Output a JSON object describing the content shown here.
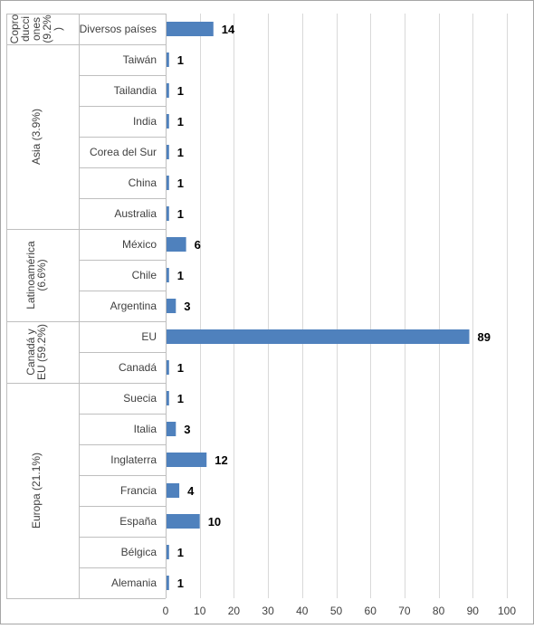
{
  "chart_data": {
    "type": "bar",
    "orientation": "horizontal",
    "categories": [
      "Diversos países",
      "Taiwán",
      "Tailandia",
      "India",
      "Corea del Sur",
      "China",
      "Australia",
      "México",
      "Chile",
      "Argentina",
      "EU",
      "Canadá",
      "Suecia",
      "Italia",
      "Inglaterra",
      "Francia",
      "España",
      "Bélgica",
      "Alemania"
    ],
    "values": [
      14,
      1,
      1,
      1,
      1,
      1,
      1,
      6,
      1,
      3,
      89,
      1,
      1,
      3,
      12,
      4,
      10,
      1,
      1
    ],
    "data_labels": [
      "14",
      "1",
      "1",
      "1",
      "1",
      "1",
      "1",
      "6",
      "1",
      "3",
      "89",
      "1",
      "1",
      "3",
      "12",
      "4",
      "10",
      "1",
      "1"
    ],
    "groups": [
      {
        "label": "Copro ducci ones (9.2% )",
        "lines": [
          "Copro",
          "ducci",
          "ones",
          "(9.2%",
          ")"
        ],
        "start": 0,
        "end": 0
      },
      {
        "label": "Asia (3.9%)",
        "lines": [
          "Asia (3.9%)"
        ],
        "start": 1,
        "end": 6
      },
      {
        "label": "Latinoamérica (6.6%)",
        "lines": [
          "Latinoamérica",
          "(6.6%)"
        ],
        "start": 7,
        "end": 9
      },
      {
        "label": "Canadá y EU (59.2%)",
        "lines": [
          "Canadá y",
          "EU (59.2%)"
        ],
        "start": 10,
        "end": 11
      },
      {
        "label": "Europa (21.1%)",
        "lines": [
          "Europa (21.1%)"
        ],
        "start": 12,
        "end": 18
      }
    ],
    "xlim": [
      0,
      100
    ],
    "x_ticks": [
      0,
      10,
      20,
      30,
      40,
      50,
      60,
      70,
      80,
      90,
      100
    ],
    "x_tick_labels": [
      "0",
      "10",
      "20",
      "30",
      "40",
      "50",
      "60",
      "70",
      "80",
      "90",
      "100"
    ],
    "grid": true,
    "legend": "none",
    "colors": {
      "bar": "#4f81bd",
      "grid": "#d9d9d9",
      "axis": "#bfbfbf",
      "frame": "#a6a6a6",
      "text": "#404040",
      "label": "#000000"
    }
  }
}
